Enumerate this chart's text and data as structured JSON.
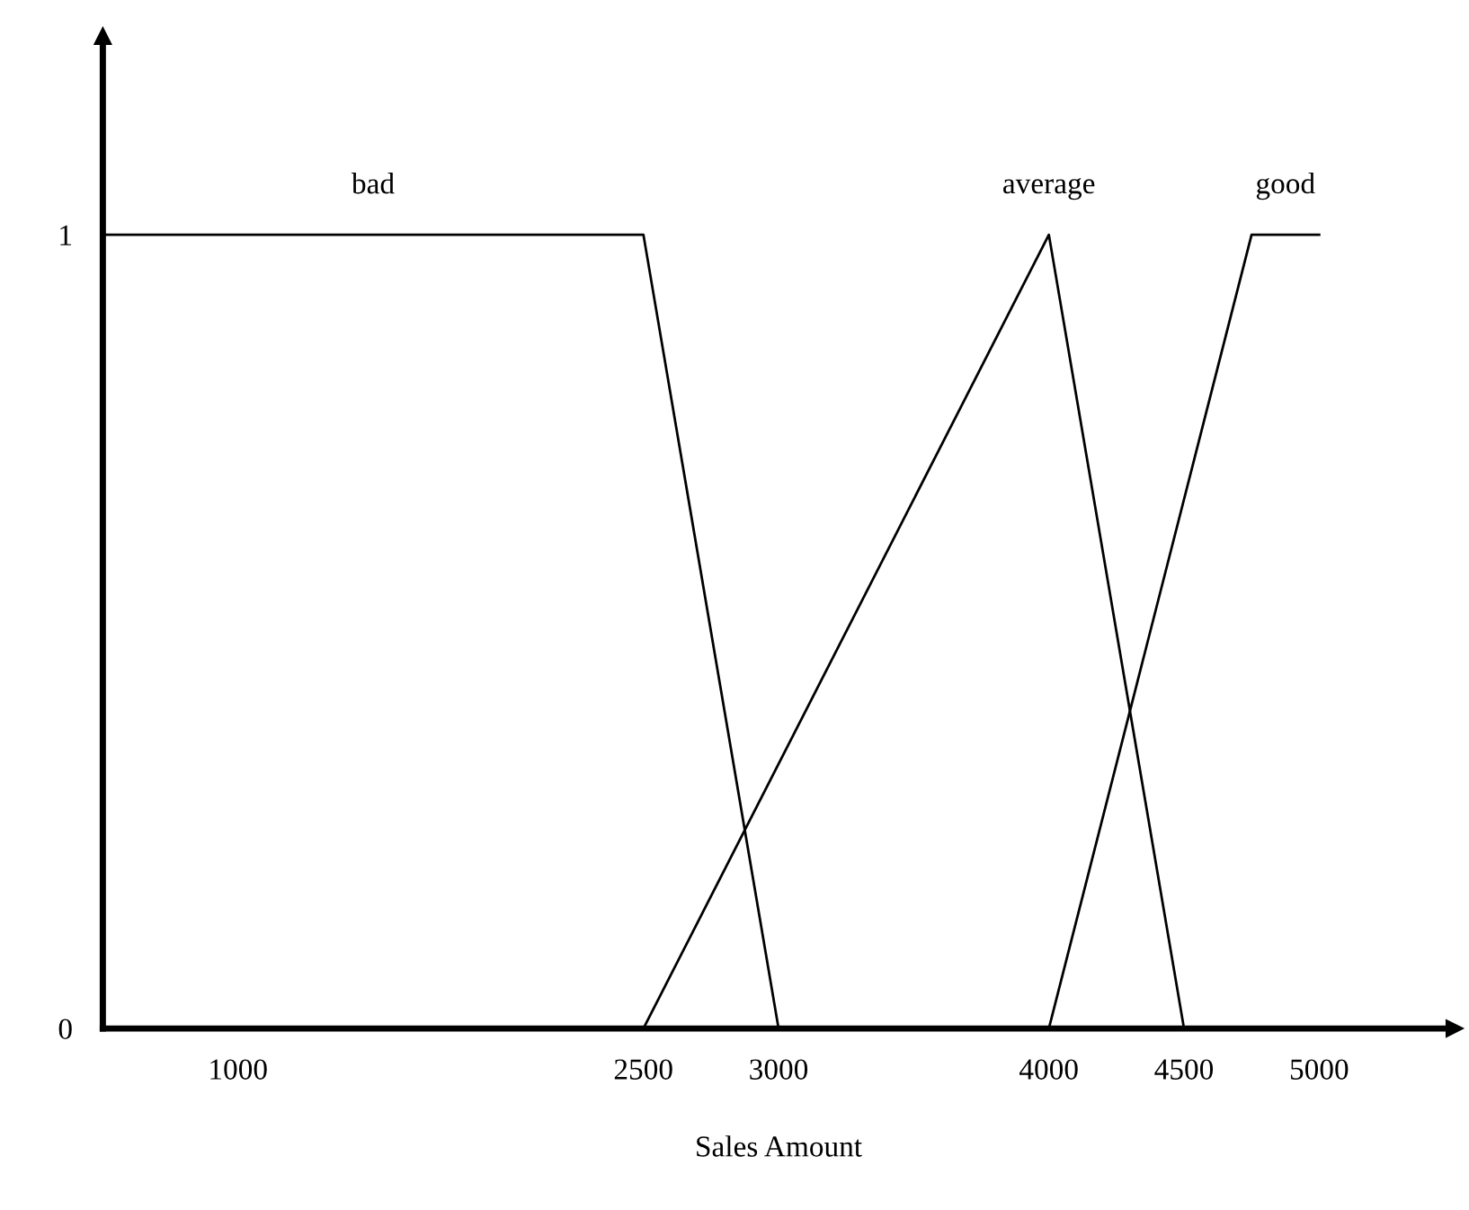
{
  "chart_data": {
    "type": "line",
    "xlabel": "Sales Amount",
    "series": [
      {
        "name": "bad",
        "color": "#000000",
        "x": [
          500,
          2500,
          3000
        ],
        "values": [
          1,
          1,
          0
        ]
      },
      {
        "name": "average",
        "color": "#000000",
        "x": [
          2500,
          4000,
          4500
        ],
        "values": [
          0,
          1,
          0
        ]
      },
      {
        "name": "good",
        "color": "#000000",
        "x": [
          4000,
          4750,
          5000
        ],
        "values": [
          0,
          1,
          1
        ]
      }
    ],
    "xlim": [
      500,
      5500
    ],
    "xticks": [
      1000,
      2500,
      3000,
      4000,
      4500,
      5000
    ],
    "ylim": [
      0,
      1.25
    ],
    "yticks": [
      0,
      1
    ],
    "grid": false,
    "legend": false,
    "marker": "none",
    "line_style": "solid"
  }
}
